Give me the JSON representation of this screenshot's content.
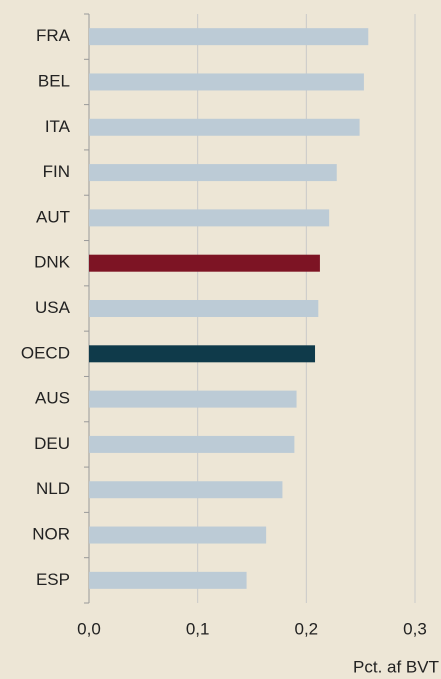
{
  "chart_data": {
    "type": "bar",
    "orientation": "horizontal",
    "categories": [
      "FRA",
      "BEL",
      "ITA",
      "FIN",
      "AUT",
      "DNK",
      "USA",
      "OECD",
      "AUS",
      "DEU",
      "NLD",
      "NOR",
      "ESP"
    ],
    "values": [
      0.257,
      0.253,
      0.249,
      0.228,
      0.221,
      0.2125,
      0.211,
      0.208,
      0.191,
      0.189,
      0.178,
      0.163,
      0.145
    ],
    "colors": [
      "#bccbd6",
      "#bccbd6",
      "#bccbd6",
      "#bccbd6",
      "#bccbd6",
      "#7d1424",
      "#bccbd6",
      "#0f3a4a",
      "#bccbd6",
      "#bccbd6",
      "#bccbd6",
      "#bccbd6",
      "#bccbd6"
    ],
    "xlim": [
      0,
      0.3
    ],
    "xticks": [
      {
        "value": 0,
        "label": "0,0"
      },
      {
        "value": 0.1,
        "label": "0,1"
      },
      {
        "value": 0.2,
        "label": "0,2"
      },
      {
        "value": 0.3,
        "label": "0,3"
      }
    ],
    "x_label": "Pct. af BVT",
    "grid": true
  }
}
